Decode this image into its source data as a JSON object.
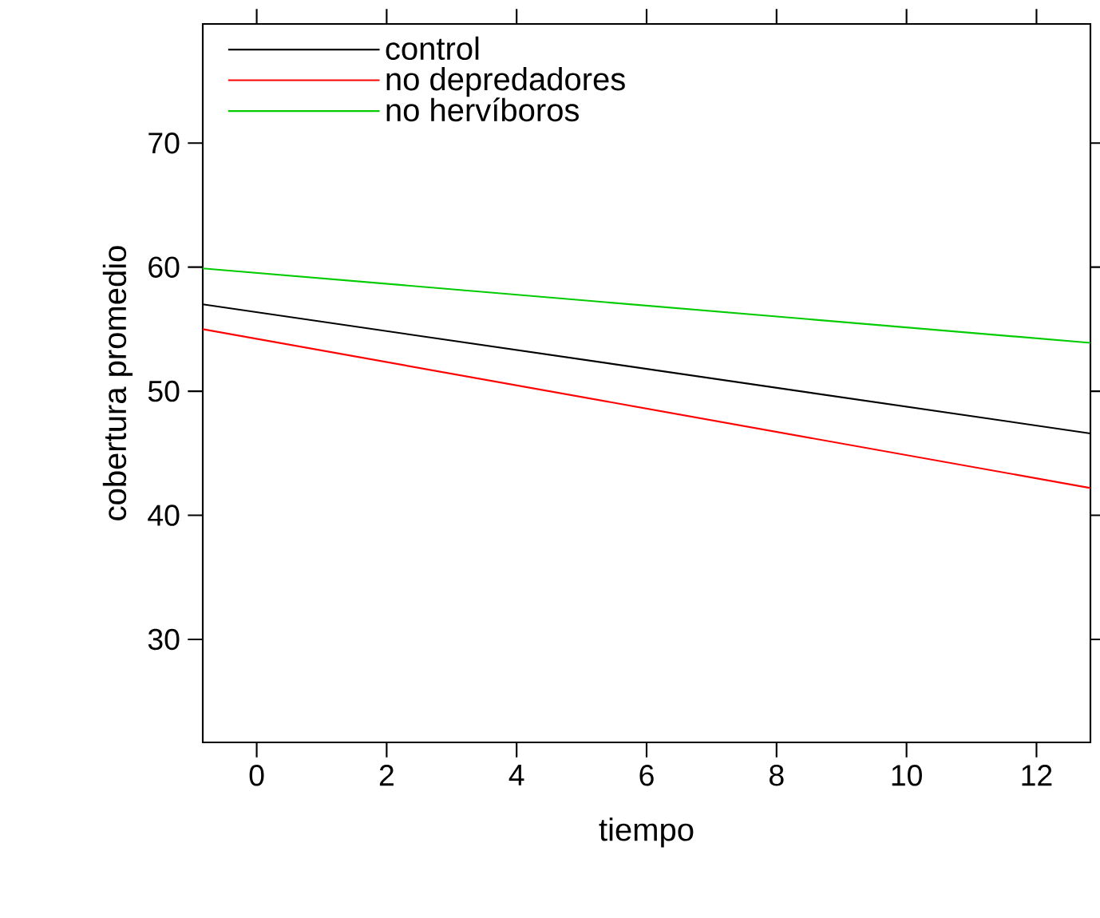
{
  "chart_data": {
    "type": "line",
    "xlabel": "tiempo",
    "ylabel": "cobertura promedio",
    "x": [
      -0.83,
      12.83
    ],
    "series": [
      {
        "name": "control",
        "color": "#000000",
        "values": [
          57.0,
          46.6
        ]
      },
      {
        "name": "no depredadores",
        "color": "#ff0000",
        "values": [
          55.0,
          42.2
        ]
      },
      {
        "name": "no hervíboros",
        "color": "#00cc00",
        "values": [
          59.9,
          53.9
        ]
      }
    ],
    "xlim": [
      -0.83,
      12.83
    ],
    "ylim": [
      21.7,
      79.6
    ],
    "xticks": [
      0,
      2,
      4,
      6,
      8,
      10,
      12
    ],
    "yticks": [
      30,
      40,
      50,
      60,
      70
    ],
    "legend": "top left"
  }
}
